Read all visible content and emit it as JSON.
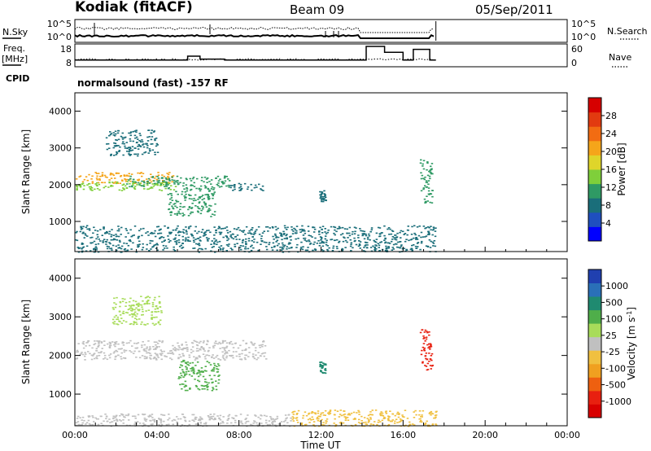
{
  "header": {
    "station": "Kodiak (fitACF)",
    "beam": "Beam 09",
    "date": "05/Sep/2011"
  },
  "side_labels": {
    "nsky": "N.Sky",
    "freq_l1": "Freq.",
    "freq_l2": "[MHz]",
    "cpid": "CPID",
    "nsearch": "N.Search",
    "nave": "Nave"
  },
  "cpid_text": "normalsound (fast) -157 RF",
  "chart_data": [
    {
      "type": "line",
      "panel": "noise",
      "series": [
        {
          "name": "N.Sky"
        },
        {
          "name": "N.Search"
        }
      ],
      "yticks_left": [
        "10^5",
        "10^0"
      ],
      "yticks_right": [
        "10^5",
        "10^0"
      ],
      "x_start_hours": 0,
      "x_end_hours": 17.6
    },
    {
      "type": "line",
      "panel": "freq-nave",
      "series": [
        {
          "name": "Freq.",
          "x": [
            0,
            5.5,
            5.5,
            6.1,
            6.1,
            7.3,
            7.3,
            14.2,
            14.2,
            15.1,
            15.1,
            16.0,
            16.0,
            16.5,
            16.5,
            17.3,
            17.3,
            17.6
          ],
          "y": [
            11,
            11,
            13,
            13,
            11.5,
            11.5,
            11,
            11,
            18,
            18,
            15,
            15,
            11,
            11,
            16.5,
            16.5,
            11,
            11
          ]
        },
        {
          "name": "Nave"
        }
      ],
      "yticks_left": [
        "18",
        "8"
      ],
      "yticks_right": [
        "60",
        "0"
      ]
    },
    {
      "type": "heatmap",
      "panel": "power",
      "ylabel": "Slant Range [km]",
      "ylim": [
        180,
        4500
      ],
      "yticks": [
        1000,
        2000,
        3000,
        4000
      ],
      "colorbar_label": "Power [dB]",
      "colorbar_ticks": [
        "4",
        "8",
        "12",
        "16",
        "20",
        "24",
        "28"
      ],
      "colors": [
        "#0000ff",
        "#1f4fbf",
        "#1a6e7a",
        "#2f9a64",
        "#7fcf3a",
        "#dfd52a",
        "#f5a51a",
        "#f26c12",
        "#e23a10",
        "#d60000"
      ],
      "vmin": 0,
      "vmax": 32,
      "regions": [
        {
          "x": [
            0.0,
            4.9
          ],
          "y": [
            2050,
            2350
          ],
          "value": 22
        },
        {
          "x": [
            0.0,
            4.9
          ],
          "y": [
            1850,
            2100
          ],
          "value": 14
        },
        {
          "x": [
            2.5,
            7.5
          ],
          "y": [
            1950,
            2250
          ],
          "value": 10
        },
        {
          "x": [
            4.5,
            6.8
          ],
          "y": [
            1150,
            1950
          ],
          "value": 12
        },
        {
          "x": [
            7.5,
            9.2
          ],
          "y": [
            1850,
            2050
          ],
          "value": 8
        },
        {
          "x": [
            1.5,
            4.0
          ],
          "y": [
            2800,
            3500
          ],
          "value": 9
        },
        {
          "x": [
            11.9,
            12.2
          ],
          "y": [
            1550,
            1850
          ],
          "value": 8
        },
        {
          "x": [
            16.8,
            17.4
          ],
          "y": [
            1500,
            2700
          ],
          "value": 10
        },
        {
          "x": [
            0.0,
            17.6
          ],
          "y": [
            180,
            900
          ],
          "value": 8
        }
      ]
    },
    {
      "type": "heatmap",
      "panel": "velocity",
      "ylabel": "Slant Range [km]",
      "ylim": [
        180,
        4500
      ],
      "yticks": [
        1000,
        2000,
        3000,
        4000
      ],
      "colorbar_label": "Velocity [m s-1]",
      "colorbar_ticks": [
        "1000",
        "500",
        "100",
        "25",
        "-25",
        "-100",
        "-500",
        "-1000"
      ],
      "colors": [
        "#2040b0",
        "#2a70b8",
        "#1f8a70",
        "#4fae4a",
        "#a8dc5a",
        "#c0c0c0",
        "#f0c040",
        "#f0a020",
        "#ee6010",
        "#e82010",
        "#d80000"
      ],
      "regions": [
        {
          "x": [
            0.0,
            9.3
          ],
          "y": [
            1900,
            2400
          ],
          "value": 0
        },
        {
          "x": [
            5.0,
            7.0
          ],
          "y": [
            1100,
            1900
          ],
          "value": 150
        },
        {
          "x": [
            1.8,
            4.2
          ],
          "y": [
            2800,
            3550
          ],
          "value": 80
        },
        {
          "x": [
            11.9,
            12.2
          ],
          "y": [
            1550,
            1850
          ],
          "value": 300
        },
        {
          "x": [
            16.8,
            17.4
          ],
          "y": [
            1600,
            2700
          ],
          "value": -1000
        },
        {
          "x": [
            10.5,
            17.6
          ],
          "y": [
            180,
            600
          ],
          "value": -80
        },
        {
          "x": [
            0.0,
            10.5
          ],
          "y": [
            180,
            500
          ],
          "value": 0
        }
      ]
    }
  ],
  "x_axis": {
    "label": "Time UT",
    "ticks": [
      "00:00",
      "04:00",
      "08:00",
      "12:00",
      "16:00",
      "20:00",
      "00:00"
    ],
    "range_hours": [
      0,
      24
    ]
  },
  "power_ylabel": "Slant Range [km]",
  "velocity_ylabel": "Slant Range [km]",
  "power_yticks": [
    "1000",
    "2000",
    "3000",
    "4000"
  ],
  "velocity_yticks": [
    "1000",
    "2000",
    "3000",
    "4000"
  ],
  "power_cb_label": "Power [dB]",
  "power_cb_ticks": [
    "4",
    "8",
    "12",
    "16",
    "20",
    "24",
    "28"
  ],
  "velocity_cb_label": "Velocity [m s",
  "velocity_cb_sup": "-1",
  "velocity_cb_close": "]",
  "velocity_cb_ticks": [
    "1000",
    "500",
    "100",
    "25",
    "-25",
    "-100",
    "-500",
    "-1000"
  ]
}
